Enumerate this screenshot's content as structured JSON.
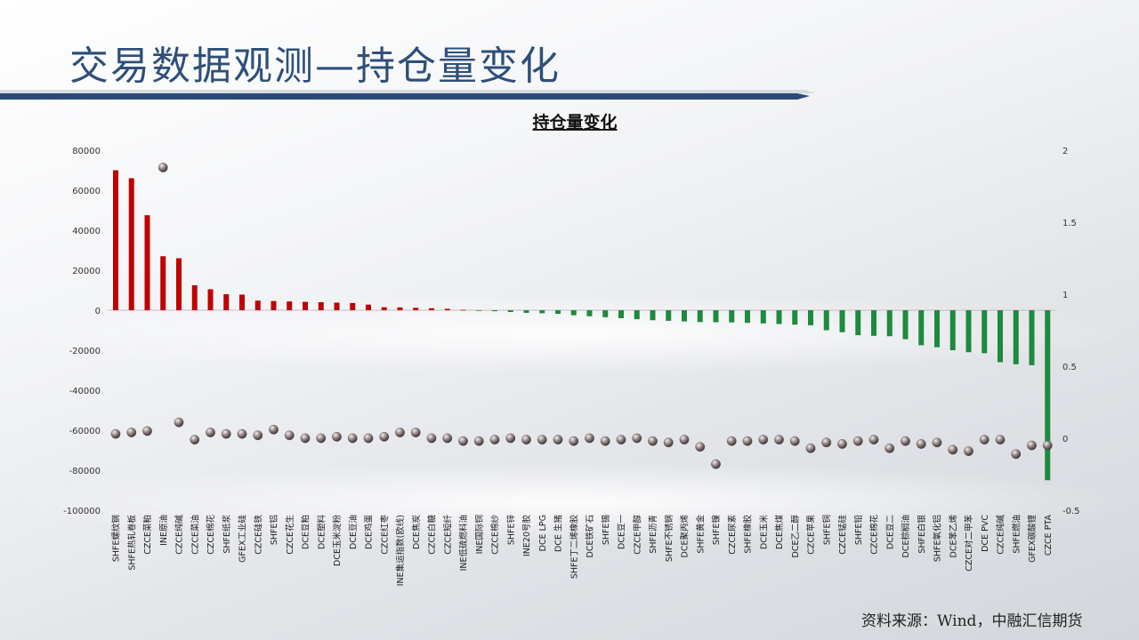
{
  "page": {
    "title": "交易数据观测—持仓量变化"
  },
  "source_note": "资料来源：Wind，中融汇信期货",
  "colors": {
    "positive": "#c00000",
    "negative": "#1e8a3c",
    "dot": "#8a7d7d",
    "title": "#2e4f7a"
  },
  "chart_data": {
    "type": "bar",
    "title": "持仓量变化",
    "categories": [
      "SHFE螺纹钢",
      "SHFE热轧卷板",
      "CZCE菜粕",
      "INE原油",
      "CZCE纯碱",
      "CZCE菜油",
      "CZCE棉花",
      "SHFE纸浆",
      "GFEX工业硅",
      "CZCE硅铁",
      "SHFE铝",
      "CZCE花生",
      "DCE豆粕",
      "DCE塑料",
      "DCE玉米淀粉",
      "DCE豆油",
      "DCE鸡蛋",
      "CZCE红枣",
      "INE集运指数(欧线)",
      "DCE焦炭",
      "CZCE白糖",
      "CZCE短纤",
      "INE低硫燃料油",
      "INE国际铜",
      "CZCE棉纱",
      "SHFE锌",
      "INE20号胶",
      "DCE LPG",
      "DCE 生猪",
      "SHFE丁二烯橡胶",
      "DCE铁矿石",
      "SHFE锡",
      "DCE豆一",
      "CZCE甲醇",
      "SHFE沥青",
      "SHFE不锈钢",
      "DCE聚丙烯",
      "SHFE黄金",
      "SHFE镍",
      "CZCE尿素",
      "SHFE橡胶",
      "DCE玉米",
      "DCE焦煤",
      "DCE乙二醇",
      "CZCE苹果",
      "SHFE铜",
      "CZCE锰硅",
      "SHFE铅",
      "CZCE棉花",
      "DCE豆二",
      "DCE棕榈油",
      "SHFE白银",
      "SHFE氧化铝",
      "DCE苯乙烯",
      "CZCE对二甲苯",
      "DCE PVC",
      "CZCE纯碱",
      "SHFE燃油",
      "GFEX碳酸锂",
      "CZCE PTA"
    ],
    "series": [
      {
        "name": "",
        "axis": "left",
        "mark": "bar",
        "values": [
          70000,
          66000,
          47500,
          27000,
          26000,
          12500,
          10500,
          8000,
          7800,
          4800,
          4600,
          4400,
          4200,
          4000,
          3800,
          3600,
          2800,
          1500,
          1400,
          1200,
          1000,
          700,
          200,
          -300,
          -500,
          -900,
          -1300,
          -1500,
          -1800,
          -2500,
          -3000,
          -3500,
          -4000,
          -4500,
          -5000,
          -5300,
          -5600,
          -5900,
          -6000,
          -6100,
          -6300,
          -6600,
          -6900,
          -7200,
          -7500,
          -10000,
          -11000,
          -12500,
          -12800,
          -13000,
          -14500,
          -17500,
          -18500,
          -20000,
          -21000,
          -21500,
          -26000,
          -27000,
          -27500,
          -85000
        ]
      },
      {
        "name": "",
        "axis": "right",
        "mark": "dot",
        "values": [
          0.03,
          0.04,
          0.05,
          1.88,
          0.11,
          -0.01,
          0.04,
          0.03,
          0.03,
          0.02,
          0.06,
          0.02,
          0.0,
          0.0,
          0.01,
          0.0,
          0.0,
          0.01,
          0.04,
          0.04,
          0.0,
          0.0,
          -0.02,
          -0.02,
          -0.01,
          0.0,
          -0.01,
          -0.01,
          -0.01,
          -0.02,
          0.0,
          -0.02,
          -0.01,
          0.0,
          -0.02,
          -0.03,
          -0.01,
          -0.06,
          -0.18,
          -0.02,
          -0.02,
          -0.01,
          -0.01,
          -0.02,
          -0.07,
          -0.03,
          -0.04,
          -0.02,
          -0.01,
          -0.07,
          -0.02,
          -0.04,
          -0.03,
          -0.08,
          -0.09,
          -0.01,
          -0.01,
          -0.11,
          -0.05,
          -0.05
        ]
      }
    ],
    "y_left": {
      "min": -100000,
      "max": 80000,
      "ticks": [
        "80000",
        "60000",
        "40000",
        "20000",
        "0",
        "-20000",
        "-40000",
        "-60000",
        "-80000",
        "-100000"
      ]
    },
    "y_right": {
      "min": -0.5,
      "max": 2,
      "ticks": [
        "2",
        "1.5",
        "1",
        "0.5",
        "0",
        "-0.5"
      ]
    },
    "legend": "none",
    "grid": false
  }
}
